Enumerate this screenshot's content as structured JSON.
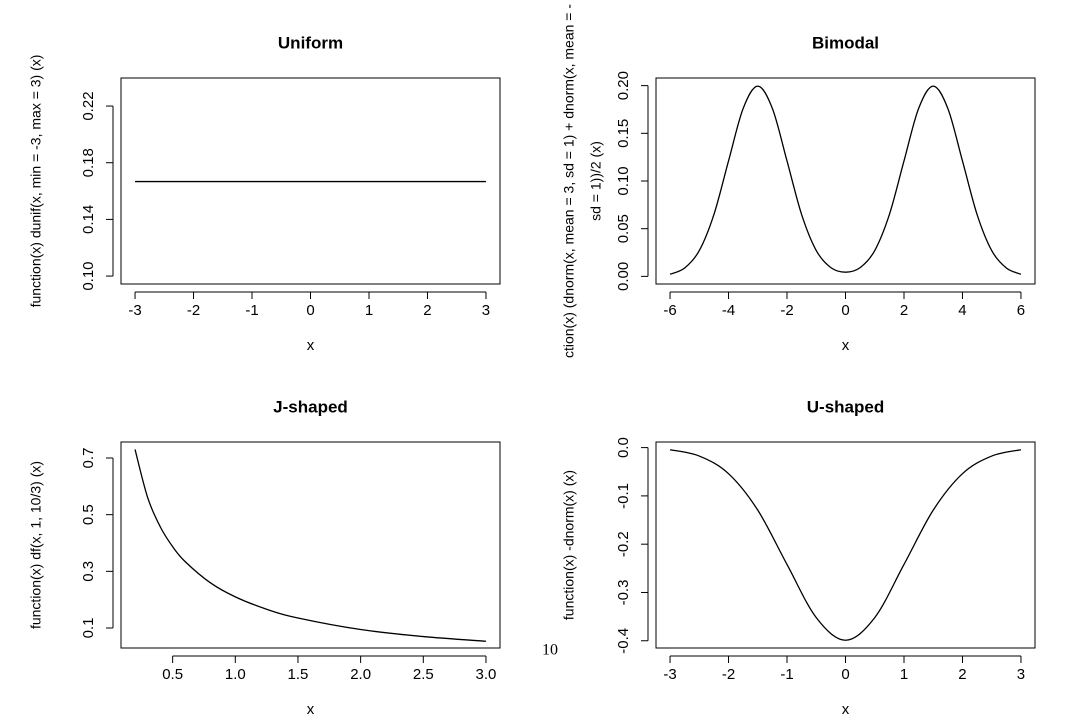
{
  "chart_data": [
    {
      "type": "line",
      "title": "Uniform",
      "xlabel": "x",
      "ylabel": "function(x) dunif(x, min = -3, max = 3) (x)",
      "color": "#000000",
      "x": [
        -3,
        3
      ],
      "values": [
        0.1667,
        0.1667
      ],
      "xlim": [
        -3.24,
        3.24
      ],
      "ylim": [
        0.0944,
        0.2398
      ],
      "xticks": [
        -3,
        -2,
        -1,
        0,
        1,
        2,
        3
      ],
      "yticks": [
        {
          "value": 0.1,
          "label": "0.10"
        },
        {
          "value": 0.14,
          "label": "0.14"
        },
        {
          "value": 0.18,
          "label": "0.18"
        },
        {
          "value": 0.22,
          "label": "0.22"
        }
      ]
    },
    {
      "type": "line",
      "title": "Bimodal",
      "xlabel": "x",
      "ylabel": [
        "ction(x) (dnorm(x, mean = 3, sd = 1) + dnorm(x, mean = -",
        "sd = 1))/2 (x)"
      ],
      "color": "#000000",
      "x": [
        -6,
        -5.5,
        -5,
        -4.5,
        -4,
        -3.5,
        -3,
        -2.5,
        -2,
        -1.5,
        -1,
        -0.5,
        0,
        0.5,
        1,
        1.5,
        2,
        2.5,
        3,
        3.5,
        4,
        4.5,
        5,
        5.5,
        6
      ],
      "values": [
        0.0022,
        0.0088,
        0.027,
        0.0648,
        0.121,
        0.176,
        0.1995,
        0.176,
        0.121,
        0.0648,
        0.0271,
        0.0092,
        0.0044,
        0.0092,
        0.0271,
        0.0648,
        0.121,
        0.176,
        0.1995,
        0.176,
        0.121,
        0.0648,
        0.027,
        0.0088,
        0.0022
      ],
      "xlim": [
        -6.48,
        6.48
      ],
      "ylim": [
        -0.008,
        0.208
      ],
      "xticks": [
        -6,
        -4,
        -2,
        0,
        2,
        4,
        6
      ],
      "yticks": [
        {
          "value": 0,
          "label": "0.00"
        },
        {
          "value": 0.05,
          "label": "0.05"
        },
        {
          "value": 0.1,
          "label": "0.10"
        },
        {
          "value": 0.15,
          "label": "0.15"
        },
        {
          "value": 0.2,
          "label": "0.20"
        }
      ]
    },
    {
      "type": "line",
      "title": "J-shaped",
      "xlabel": "x",
      "ylabel": "function(x) df(x, 1, 10/3) (x)",
      "color": "#000000",
      "x": [
        0.2,
        0.3,
        0.4,
        0.5,
        0.6,
        0.8,
        1.0,
        1.25,
        1.5,
        2.0,
        2.5,
        3.0
      ],
      "values": [
        0.7302,
        0.5612,
        0.4583,
        0.3871,
        0.3342,
        0.2599,
        0.2099,
        0.1662,
        0.1353,
        0.0946,
        0.0697,
        0.0532
      ],
      "xlim": [
        0.088,
        3.112
      ],
      "ylim": [
        0.0294,
        0.7565
      ],
      "xticks": [
        0.5,
        {
          "value": 1,
          "label": "1.0"
        },
        1.5,
        {
          "value": 2,
          "label": "2.0"
        },
        2.5,
        {
          "value": 3,
          "label": "3.0"
        }
      ],
      "yticks": [
        0.1,
        0.3,
        0.5,
        0.7
      ]
    },
    {
      "type": "line",
      "title": "U-shaped",
      "xlabel": "x",
      "ylabel": "function(x) -dnorm(x) (x)",
      "color": "#000000",
      "x": [
        -3,
        -2.5,
        -2,
        -1.5,
        -1,
        -0.5,
        0,
        0.5,
        1,
        1.5,
        2,
        2.5,
        3
      ],
      "values": [
        -0.0044,
        -0.0175,
        -0.054,
        -0.1295,
        -0.242,
        -0.3521,
        -0.3989,
        -0.3521,
        -0.242,
        -0.1295,
        -0.054,
        -0.0175,
        -0.0044
      ],
      "xlim": [
        -3.24,
        3.24
      ],
      "ylim": [
        -0.415,
        0.0116
      ],
      "xticks": [
        -3,
        -2,
        -1,
        0,
        1,
        2,
        3
      ],
      "yticks": [
        {
          "value": 0,
          "label": "0.0"
        },
        -0.1,
        -0.2,
        -0.3,
        -0.4
      ]
    }
  ],
  "page_number": "10"
}
